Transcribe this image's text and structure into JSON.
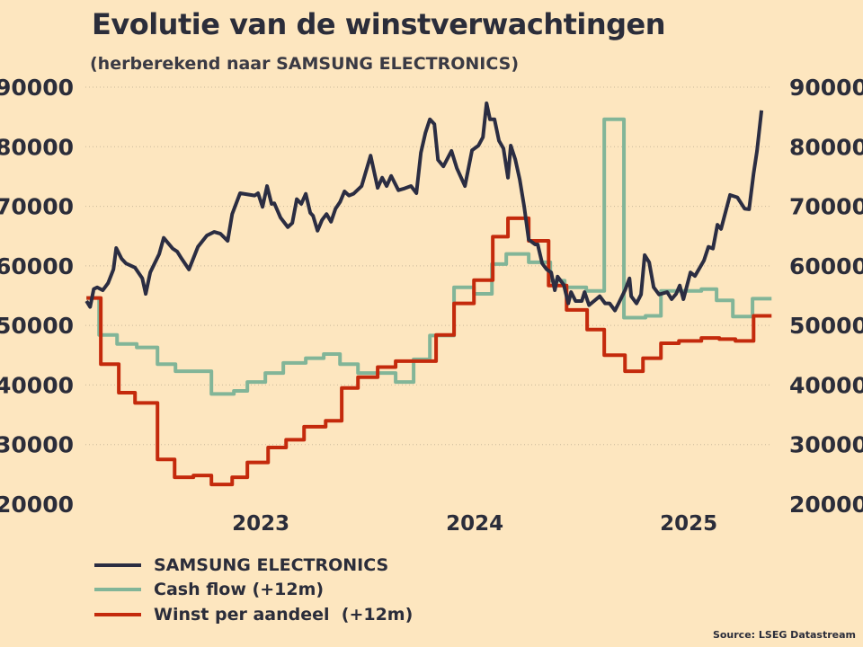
{
  "chart_data": {
    "type": "line",
    "title": "Evolutie van de winstverwachtingen",
    "subtitle": "(herberekend naar SAMSUNG ELECTRONICS)",
    "xlabel": "",
    "ylabel": "",
    "xlim": [
      2022.18,
      2025.39
    ],
    "ylim": [
      20000,
      90000
    ],
    "x_ticks": [
      2023,
      2024,
      2025
    ],
    "x_tick_labels": [
      "2023",
      "2024",
      "2025"
    ],
    "y_ticks": [
      20000,
      30000,
      40000,
      50000,
      60000,
      70000,
      80000,
      90000
    ],
    "y_tick_labels": [
      "20000",
      "30000",
      "40000",
      "50000",
      "60000",
      "70000",
      "80000",
      "90000"
    ],
    "grid": "horizontal dotted",
    "legend_position": "bottom-left",
    "series": [
      {
        "name": "SAMSUNG ELECTRONICS",
        "color": "#2b2d42",
        "step": false,
        "points": [
          [
            2022.185,
            54100
          ],
          [
            2022.202,
            53100
          ],
          [
            2022.219,
            56100
          ],
          [
            2022.235,
            56400
          ],
          [
            2022.261,
            55900
          ],
          [
            2022.286,
            57100
          ],
          [
            2022.311,
            59400
          ],
          [
            2022.324,
            63000
          ],
          [
            2022.349,
            61200
          ],
          [
            2022.37,
            60400
          ],
          [
            2022.412,
            59700
          ],
          [
            2022.446,
            57900
          ],
          [
            2022.462,
            55300
          ],
          [
            2022.483,
            58900
          ],
          [
            2022.525,
            62000
          ],
          [
            2022.546,
            64700
          ],
          [
            2022.588,
            62900
          ],
          [
            2022.609,
            62400
          ],
          [
            2022.63,
            61200
          ],
          [
            2022.664,
            59400
          ],
          [
            2022.706,
            63200
          ],
          [
            2022.748,
            65100
          ],
          [
            2022.782,
            65700
          ],
          [
            2022.811,
            65400
          ],
          [
            2022.845,
            64200
          ],
          [
            2022.866,
            68700
          ],
          [
            2022.903,
            72200
          ],
          [
            2022.971,
            71800
          ],
          [
            2022.987,
            72200
          ],
          [
            2023.008,
            69900
          ],
          [
            2023.029,
            73400
          ],
          [
            2023.05,
            70400
          ],
          [
            2023.063,
            70500
          ],
          [
            2023.092,
            68100
          ],
          [
            2023.126,
            66500
          ],
          [
            2023.147,
            67200
          ],
          [
            2023.168,
            71200
          ],
          [
            2023.189,
            70400
          ],
          [
            2023.21,
            72100
          ],
          [
            2023.231,
            68900
          ],
          [
            2023.244,
            68400
          ],
          [
            2023.265,
            65900
          ],
          [
            2023.286,
            67700
          ],
          [
            2023.307,
            68700
          ],
          [
            2023.328,
            67400
          ],
          [
            2023.349,
            69600
          ],
          [
            2023.37,
            70700
          ],
          [
            2023.391,
            72500
          ],
          [
            2023.412,
            71800
          ],
          [
            2023.433,
            72100
          ],
          [
            2023.471,
            73400
          ],
          [
            2023.513,
            78500
          ],
          [
            2023.546,
            73100
          ],
          [
            2023.567,
            74800
          ],
          [
            2023.588,
            73400
          ],
          [
            2023.609,
            75100
          ],
          [
            2023.643,
            72700
          ],
          [
            2023.672,
            73000
          ],
          [
            2023.702,
            73400
          ],
          [
            2023.727,
            72200
          ],
          [
            2023.748,
            79000
          ],
          [
            2023.769,
            82300
          ],
          [
            2023.79,
            84600
          ],
          [
            2023.811,
            83800
          ],
          [
            2023.828,
            77800
          ],
          [
            2023.853,
            76700
          ],
          [
            2023.891,
            79300
          ],
          [
            2023.916,
            76400
          ],
          [
            2023.954,
            73400
          ],
          [
            2023.987,
            79400
          ],
          [
            2024.017,
            80200
          ],
          [
            2024.038,
            81600
          ],
          [
            2024.055,
            87300
          ],
          [
            2024.071,
            84600
          ],
          [
            2024.092,
            84600
          ],
          [
            2024.113,
            81000
          ],
          [
            2024.134,
            79700
          ],
          [
            2024.155,
            74800
          ],
          [
            2024.168,
            80200
          ],
          [
            2024.189,
            77900
          ],
          [
            2024.21,
            74500
          ],
          [
            2024.231,
            69900
          ],
          [
            2024.252,
            64400
          ],
          [
            2024.282,
            63600
          ],
          [
            2024.294,
            63600
          ],
          [
            2024.315,
            60400
          ],
          [
            2024.336,
            59400
          ],
          [
            2024.357,
            58900
          ],
          [
            2024.374,
            55900
          ],
          [
            2024.387,
            58200
          ],
          [
            2024.416,
            56800
          ],
          [
            2024.437,
            53700
          ],
          [
            2024.45,
            55600
          ],
          [
            2024.471,
            54100
          ],
          [
            2024.5,
            54100
          ],
          [
            2024.513,
            55600
          ],
          [
            2024.534,
            53400
          ],
          [
            2024.584,
            54900
          ],
          [
            2024.609,
            53700
          ],
          [
            2024.63,
            53700
          ],
          [
            2024.655,
            52500
          ],
          [
            2024.672,
            53700
          ],
          [
            2024.702,
            55900
          ],
          [
            2024.723,
            57900
          ],
          [
            2024.731,
            54900
          ],
          [
            2024.756,
            53700
          ],
          [
            2024.777,
            55200
          ],
          [
            2024.794,
            61800
          ],
          [
            2024.815,
            60600
          ],
          [
            2024.836,
            56400
          ],
          [
            2024.861,
            55200
          ],
          [
            2024.899,
            55600
          ],
          [
            2024.92,
            54400
          ],
          [
            2024.941,
            55300
          ],
          [
            2024.958,
            56700
          ],
          [
            2024.975,
            54400
          ],
          [
            2025.008,
            58900
          ],
          [
            2025.029,
            58300
          ],
          [
            2025.071,
            60900
          ],
          [
            2025.092,
            63200
          ],
          [
            2025.113,
            62900
          ],
          [
            2025.134,
            66900
          ],
          [
            2025.151,
            66200
          ],
          [
            2025.193,
            71900
          ],
          [
            2025.227,
            71500
          ],
          [
            2025.261,
            69600
          ],
          [
            2025.282,
            69500
          ],
          [
            2025.303,
            75500
          ],
          [
            2025.319,
            79300
          ],
          [
            2025.34,
            86100
          ]
        ]
      },
      {
        "name": "Cash flow (+12m)",
        "color": "#82b598",
        "step": true,
        "points": [
          [
            2022.185,
            54600
          ],
          [
            2022.244,
            48400
          ],
          [
            2022.328,
            46900
          ],
          [
            2022.42,
            46300
          ],
          [
            2022.517,
            43500
          ],
          [
            2022.601,
            42300
          ],
          [
            2022.769,
            38500
          ],
          [
            2022.874,
            39000
          ],
          [
            2022.937,
            40500
          ],
          [
            2023.021,
            42000
          ],
          [
            2023.105,
            43700
          ],
          [
            2023.21,
            44500
          ],
          [
            2023.294,
            45200
          ],
          [
            2023.37,
            43500
          ],
          [
            2023.454,
            42000
          ],
          [
            2023.63,
            40500
          ],
          [
            2023.714,
            44300
          ],
          [
            2023.79,
            48300
          ],
          [
            2023.903,
            56400
          ],
          [
            2023.996,
            55300
          ],
          [
            2024.08,
            60300
          ],
          [
            2024.147,
            62000
          ],
          [
            2024.252,
            60600
          ],
          [
            2024.353,
            57500
          ],
          [
            2024.42,
            56400
          ],
          [
            2024.521,
            55800
          ],
          [
            2024.605,
            84600
          ],
          [
            2024.697,
            51300
          ],
          [
            2024.798,
            51600
          ],
          [
            2024.87,
            55800
          ],
          [
            2025.059,
            56100
          ],
          [
            2025.13,
            54200
          ],
          [
            2025.206,
            51500
          ],
          [
            2025.298,
            54500
          ],
          [
            2025.387,
            54500
          ]
        ]
      },
      {
        "name": "Winst per aandeel  (+12m)",
        "color": "#c42a0c",
        "step": true,
        "points": [
          [
            2022.185,
            54600
          ],
          [
            2022.252,
            43500
          ],
          [
            2022.336,
            38700
          ],
          [
            2022.412,
            37000
          ],
          [
            2022.517,
            27500
          ],
          [
            2022.597,
            24500
          ],
          [
            2022.685,
            24800
          ],
          [
            2022.769,
            23300
          ],
          [
            2022.866,
            24500
          ],
          [
            2022.937,
            27000
          ],
          [
            2023.034,
            29500
          ],
          [
            2023.118,
            30800
          ],
          [
            2023.202,
            33000
          ],
          [
            2023.303,
            34000
          ],
          [
            2023.378,
            39500
          ],
          [
            2023.454,
            41300
          ],
          [
            2023.546,
            43000
          ],
          [
            2023.63,
            44000
          ],
          [
            2023.819,
            48400
          ],
          [
            2023.903,
            53700
          ],
          [
            2023.996,
            57600
          ],
          [
            2024.084,
            64900
          ],
          [
            2024.155,
            68000
          ],
          [
            2024.252,
            64200
          ],
          [
            2024.345,
            56700
          ],
          [
            2024.429,
            52600
          ],
          [
            2024.525,
            49300
          ],
          [
            2024.605,
            45000
          ],
          [
            2024.702,
            42300
          ],
          [
            2024.786,
            44500
          ],
          [
            2024.87,
            47000
          ],
          [
            2024.954,
            47400
          ],
          [
            2025.059,
            47900
          ],
          [
            2025.143,
            47700
          ],
          [
            2025.218,
            47400
          ],
          [
            2025.303,
            51600
          ],
          [
            2025.387,
            51600
          ]
        ]
      }
    ],
    "source": "Source: LSEG Datastream"
  }
}
